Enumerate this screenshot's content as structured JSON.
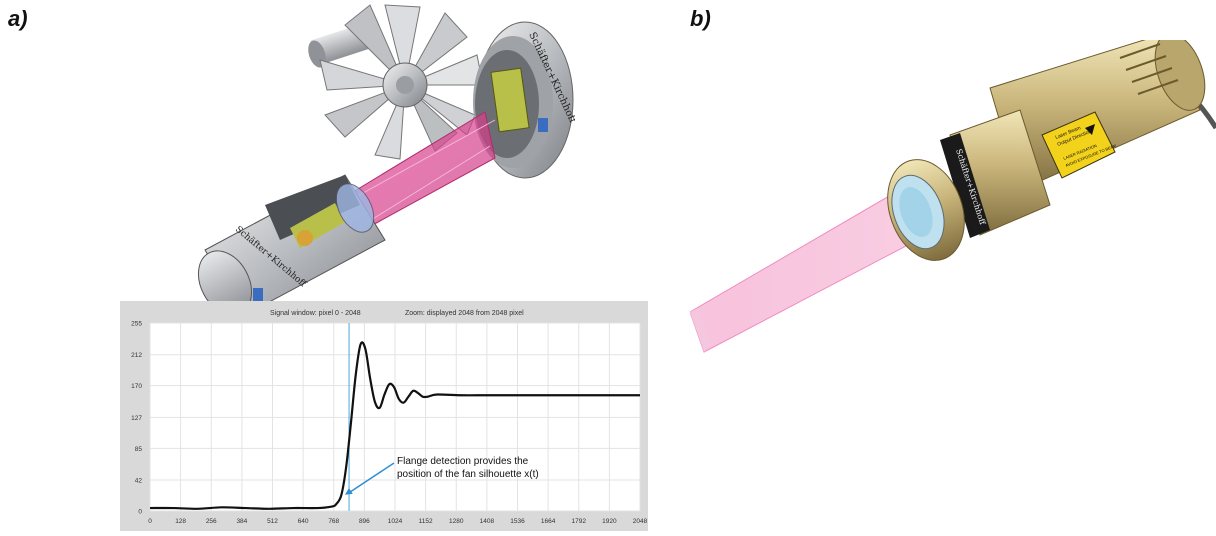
{
  "panels": {
    "a_label": "a)",
    "b_label": "b)"
  },
  "illustration_a": {
    "logo_brand": "Schäfter+Kirchhoff",
    "logo_brand_housing": "Schäfter+Kirchhoff"
  },
  "illustration_b": {
    "logo_brand": "Schäfter+Kirchhoff",
    "warning_label_line1": "Laser Beam",
    "warning_label_line2": "Output Direction",
    "warning_label_line3": "LASER RADIATION",
    "warning_label_line4": "AVOID EXPOSURE TO BEAM"
  },
  "chart_data": {
    "type": "line",
    "header_left": "Signal window: pixel 0 - 2048",
    "header_right": "Zoom: displayed 2048 from 2048 pixel",
    "xlim": [
      0,
      2048
    ],
    "ylim": [
      0,
      255
    ],
    "x_ticks": [
      "0",
      "128",
      "256",
      "384",
      "512",
      "640",
      "768",
      "896",
      "1024",
      "1152",
      "1280",
      "1408",
      "1536",
      "1664",
      "1792",
      "1920",
      "2048"
    ],
    "y_ticks": [
      "0",
      "42",
      "85",
      "127",
      "170",
      "212",
      "255"
    ],
    "marker_x": 832,
    "annotation": {
      "line1": "Flange detection provides the",
      "line2": "position of the fan silhouette x(t)"
    },
    "series": [
      {
        "x": [
          0,
          100,
          200,
          300,
          400,
          500,
          600,
          700,
          760,
          780,
          800,
          820,
          840,
          860,
          880,
          900,
          920,
          940,
          960,
          980,
          1000,
          1020,
          1040,
          1060,
          1080,
          1100,
          1120,
          1140,
          1160,
          1200,
          1300,
          1400,
          1500,
          1600,
          1700,
          1800,
          1900,
          2000,
          2048
        ],
        "y": [
          4,
          4,
          3,
          5,
          4,
          3,
          4,
          4,
          6,
          10,
          22,
          60,
          120,
          185,
          226,
          220,
          180,
          148,
          140,
          158,
          172,
          168,
          152,
          147,
          155,
          163,
          160,
          155,
          155,
          158,
          157,
          157,
          157,
          157,
          157,
          157,
          157,
          157,
          157
        ]
      }
    ]
  }
}
